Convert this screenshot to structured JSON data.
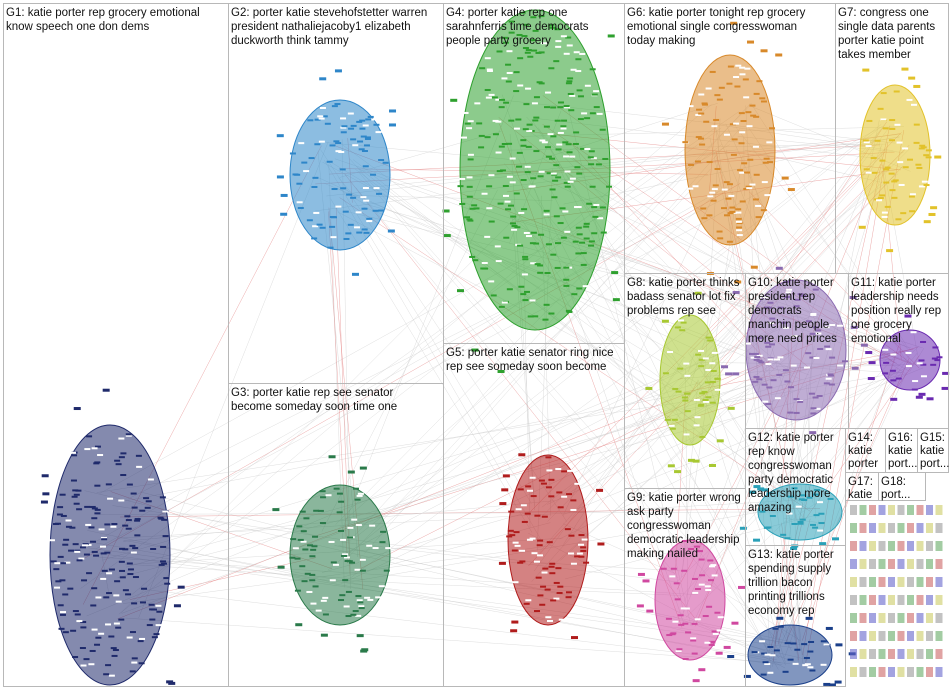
{
  "groups": [
    {
      "label": [
        "G1: katie porter rep grocery emotional",
        "know speech one don dems"
      ]
    },
    {
      "label": [
        "G2: porter katie stevehofstetter warren",
        "president nathaliejacoby1 elizabeth",
        "duckworth think tammy"
      ]
    },
    {
      "label": [
        "G3: porter katie rep see senator",
        "become someday soon time one"
      ]
    },
    {
      "label": [
        "G4: porter katie rep one",
        "sarahnferris time democrats",
        "people party grocery"
      ]
    },
    {
      "label": [
        "G5: porter katie senator ring nice",
        "rep see someday soon become"
      ]
    },
    {
      "label": [
        "G6: katie porter tonight rep grocery",
        "emotional single congresswoman",
        "today making"
      ]
    },
    {
      "label": [
        "G7: congress one",
        "single data parents",
        "porter katie point",
        "takes member"
      ]
    },
    {
      "label": [
        "G8: katie porter thinks",
        "badass senator lot fix",
        "problems rep see"
      ]
    },
    {
      "label": [
        "G9: katie porter wrong",
        "ask party",
        "congresswoman",
        "democratic leadership",
        "making nailed"
      ]
    },
    {
      "label": [
        "G10: katie porter",
        "president rep",
        "democrats",
        "manchin people",
        "more need prices"
      ]
    },
    {
      "label": [
        "G11: katie porter",
        "leadership needs",
        "position really rep",
        "one grocery",
        "emotional"
      ]
    },
    {
      "label": [
        "G12: katie porter",
        "rep know",
        "congresswoman",
        "party democratic",
        "leadership more",
        "amazing"
      ]
    },
    {
      "label": [
        "G13: katie porter",
        "spending supply",
        "trillion bacon",
        "printing trillions",
        "economy rep"
      ]
    },
    {
      "label": [
        "G14:",
        "katie",
        "porter"
      ]
    },
    {
      "label": [
        "G16:",
        "katie",
        "port..."
      ]
    },
    {
      "label": [
        "G15:",
        "katie",
        "port..."
      ]
    },
    {
      "label": [
        "G17:",
        "katie"
      ]
    },
    {
      "label": [
        "G18:",
        "port..."
      ]
    }
  ]
}
